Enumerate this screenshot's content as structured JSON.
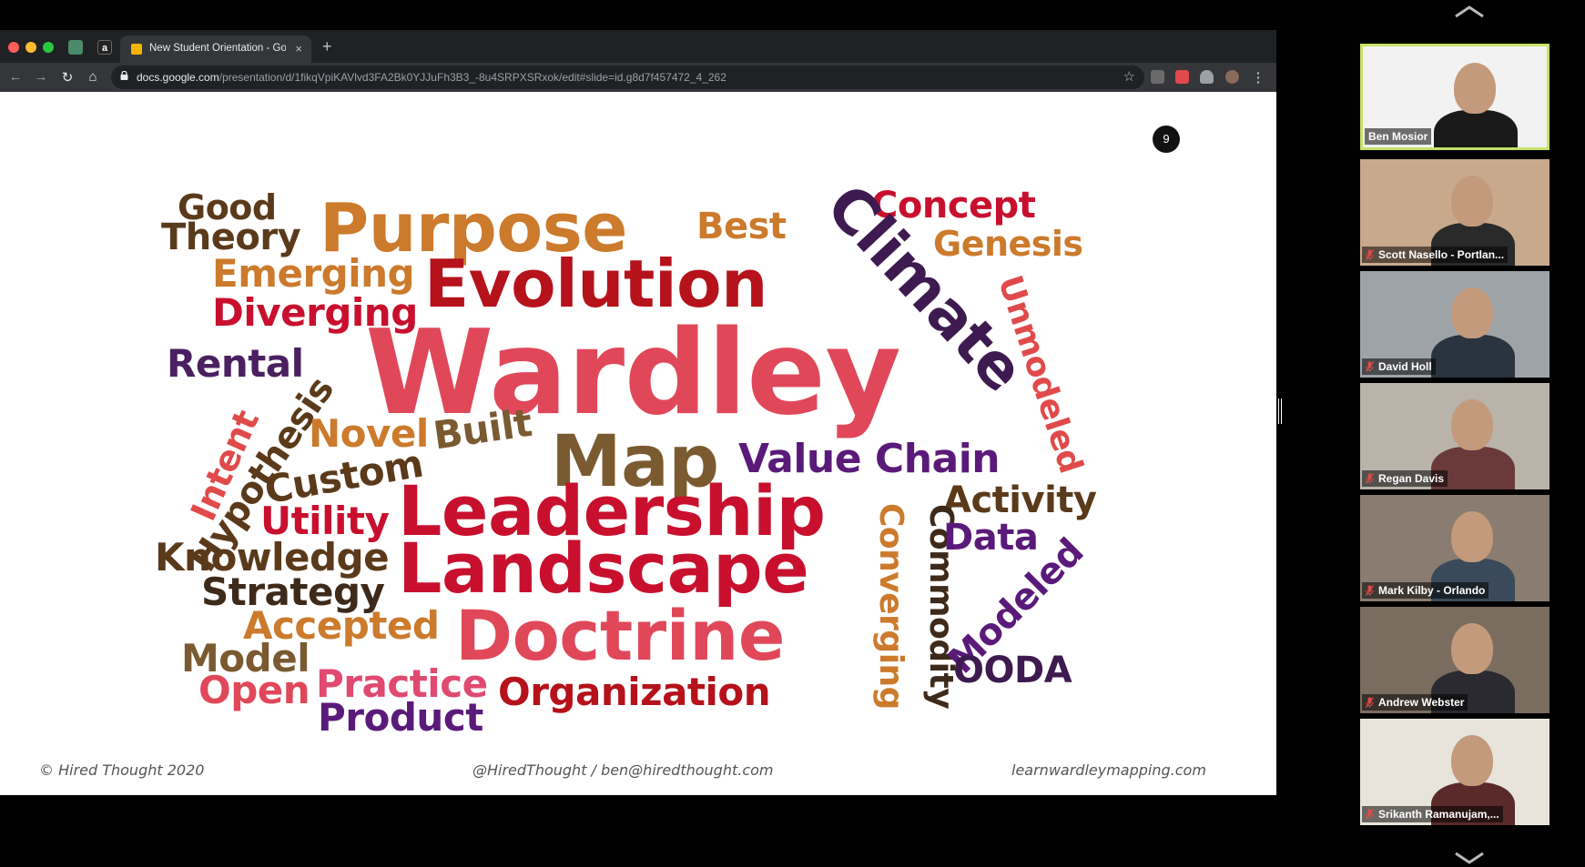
{
  "browser": {
    "tab_title": "New Student Orientation - Goo",
    "tab_close": "×",
    "new_tab": "+",
    "url_domain": "docs.google.com",
    "url_path": "/presentation/d/1fikqVpiKAVlvd3FA2Bk0YJJuFh3B3_-8u4SRPXSRxok/edit#slide=id.g8d7f457472_4_262",
    "back": "←",
    "forward": "→",
    "reload": "↻",
    "home": "⌂",
    "star": "☆",
    "menu": "⋮",
    "colors": {
      "tabbar": "#202124",
      "toolbar": "#35363a",
      "close": "#ff5f57",
      "minimize": "#febc2e",
      "maximize": "#28c840"
    }
  },
  "slide": {
    "page_number": "9",
    "words": [
      {
        "text": "Good",
        "color": "#5a3a1a"
      },
      {
        "text": "Theory",
        "color": "#5a3a1a"
      },
      {
        "text": "Purpose",
        "color": "#cc7a2c"
      },
      {
        "text": "Best",
        "color": "#cc7a2c"
      },
      {
        "text": "Concept",
        "color": "#c8102e"
      },
      {
        "text": "Genesis",
        "color": "#cc7a2c"
      },
      {
        "text": "Emerging",
        "color": "#cc7a2c"
      },
      {
        "text": "Evolution",
        "color": "#b5121b"
      },
      {
        "text": "Climate",
        "color": "#3d1a4f"
      },
      {
        "text": "Diverging",
        "color": "#c8102e"
      },
      {
        "text": "Unmodeled",
        "color": "#e04a4a"
      },
      {
        "text": "Rental",
        "color": "#4a2060"
      },
      {
        "text": "Wardley",
        "color": "#e0485a"
      },
      {
        "text": "Hypothesis",
        "color": "#5a3a1a"
      },
      {
        "text": "Intent",
        "color": "#e04a4a"
      },
      {
        "text": "Novel",
        "color": "#cc7a2c"
      },
      {
        "text": "Built",
        "color": "#7a5a30"
      },
      {
        "text": "Custom",
        "color": "#5a3a1a"
      },
      {
        "text": "Map",
        "color": "#7a5a30"
      },
      {
        "text": "Value Chain",
        "color": "#5a1a7a"
      },
      {
        "text": "Utility",
        "color": "#c8102e"
      },
      {
        "text": "Leadership",
        "color": "#c8102e"
      },
      {
        "text": "Activity",
        "color": "#5a3a1a"
      },
      {
        "text": "Converging",
        "color": "#cc7a2c"
      },
      {
        "text": "Commodity",
        "color": "#3d2a1a"
      },
      {
        "text": "Data",
        "color": "#5a1a7a"
      },
      {
        "text": "Knowledge",
        "color": "#5a3a1a"
      },
      {
        "text": "Strategy",
        "color": "#3d2a1a"
      },
      {
        "text": "Landscape",
        "color": "#c8102e"
      },
      {
        "text": "Modeled",
        "color": "#5a1a7a"
      },
      {
        "text": "Accepted",
        "color": "#cc7a2c"
      },
      {
        "text": "Model",
        "color": "#7a5a30"
      },
      {
        "text": "Doctrine",
        "color": "#e0485a"
      },
      {
        "text": "Open",
        "color": "#e0485a"
      },
      {
        "text": "Practice",
        "color": "#e04a70"
      },
      {
        "text": "OODA",
        "color": "#3d1a4f"
      },
      {
        "text": "Product",
        "color": "#5a1a7a"
      },
      {
        "text": "Organization",
        "color": "#b5121b"
      }
    ],
    "footer_left": "© Hired Thought 2020",
    "footer_center": "@HiredThought / ben@hiredthought.com",
    "footer_right": "learnwardleymapping.com"
  },
  "participants": [
    {
      "name": "Ben Mosior",
      "active": true,
      "muted": false
    },
    {
      "name": "Scott Nasello - Portlan...",
      "active": false,
      "muted": true
    },
    {
      "name": "David Holl",
      "active": false,
      "muted": true
    },
    {
      "name": "Regan Davis",
      "active": false,
      "muted": true
    },
    {
      "name": "Mark Kilby - Orlando",
      "active": false,
      "muted": true
    },
    {
      "name": "Andrew Webster",
      "active": false,
      "muted": true
    },
    {
      "name": "Srikanth Ramanujam,...",
      "active": false,
      "muted": true
    }
  ]
}
